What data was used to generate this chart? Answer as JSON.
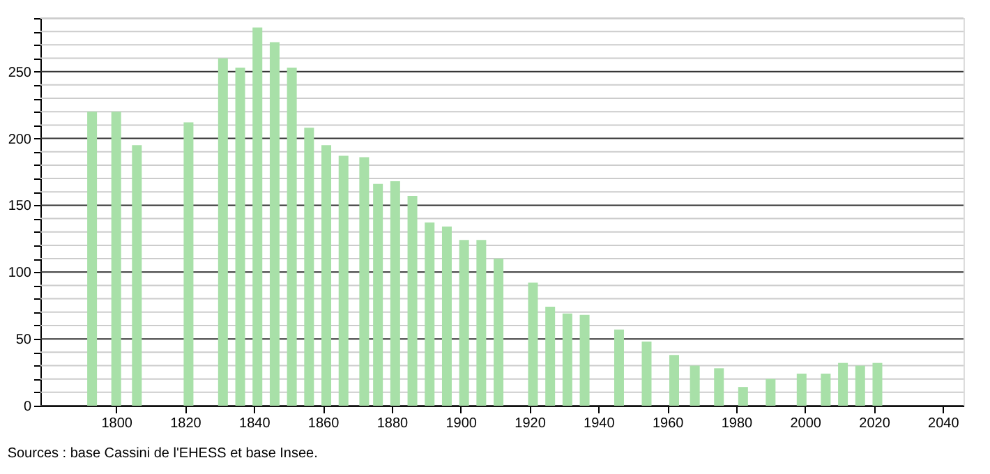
{
  "chart_data": {
    "type": "bar",
    "color": "#a8e0a8",
    "x": [
      1793,
      1800,
      1806,
      1821,
      1831,
      1836,
      1841,
      1846,
      1851,
      1856,
      1861,
      1866,
      1872,
      1876,
      1881,
      1886,
      1891,
      1896,
      1901,
      1906,
      1911,
      1921,
      1926,
      1931,
      1936,
      1946,
      1954,
      1962,
      1968,
      1975,
      1982,
      1990,
      1999,
      2006,
      2011,
      2016,
      2021
    ],
    "values": [
      220,
      220,
      195,
      212,
      260,
      253,
      283,
      272,
      253,
      208,
      195,
      187,
      186,
      166,
      168,
      157,
      137,
      134,
      124,
      124,
      110,
      92,
      74,
      69,
      68,
      57,
      48,
      38,
      30,
      28,
      14,
      20,
      24,
      24,
      32,
      30,
      32
    ],
    "xlim": [
      1778,
      2046
    ],
    "xticks": [
      1800,
      1820,
      1840,
      1860,
      1880,
      1900,
      1920,
      1940,
      1960,
      1980,
      2000,
      2020,
      2040
    ],
    "ylim": [
      0,
      290
    ],
    "yticks": [
      0,
      {
        "value": 10,
        "label": null
      },
      {
        "value": 20,
        "label": null
      },
      {
        "value": 30,
        "label": null
      },
      {
        "value": 40,
        "label": null
      },
      50,
      {
        "value": 60,
        "label": null
      },
      {
        "value": 70,
        "label": null
      },
      {
        "value": 80,
        "label": null
      },
      {
        "value": 90,
        "label": null
      },
      100,
      {
        "value": 110,
        "label": null
      },
      {
        "value": 120,
        "label": null
      },
      {
        "value": 130,
        "label": null
      },
      {
        "value": 140,
        "label": null
      },
      150,
      {
        "value": 160,
        "label": null
      },
      {
        "value": 170,
        "label": null
      },
      {
        "value": 180,
        "label": null
      },
      {
        "value": 190,
        "label": null
      },
      200,
      {
        "value": 210,
        "label": null
      },
      {
        "value": 220,
        "label": null
      },
      {
        "value": 230,
        "label": null
      },
      {
        "value": 240,
        "label": null
      },
      250,
      {
        "value": 260,
        "label": null
      },
      {
        "value": 270,
        "label": null
      },
      {
        "value": 280,
        "label": null
      },
      {
        "value": 290,
        "label": null
      }
    ],
    "grid": "y",
    "annotations": [
      "Sources : base Cassini de l'EHESS et base Insee."
    ]
  }
}
